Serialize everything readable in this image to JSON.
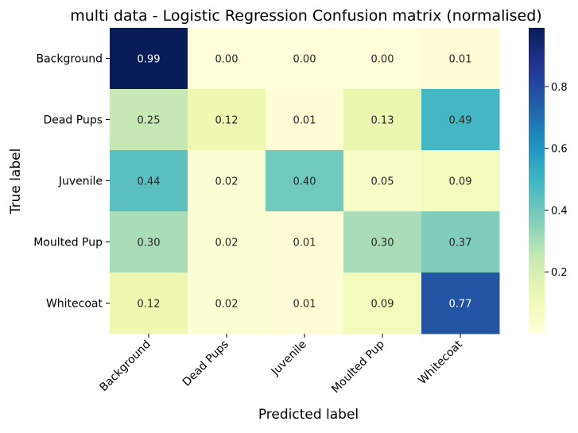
{
  "chart_data": {
    "type": "heatmap",
    "title": "multi data - Logistic Regression Confusion matrix (normalised)",
    "xlabel": "Predicted label",
    "ylabel": "True label",
    "x_categories": [
      "Background",
      "Dead Pups",
      "Juvenile",
      "Moulted Pup",
      "Whitecoat"
    ],
    "y_categories": [
      "Background",
      "Dead Pups",
      "Juvenile",
      "Moulted Pup",
      "Whitecoat"
    ],
    "values": [
      [
        0.99,
        0.0,
        0.0,
        0.0,
        0.01
      ],
      [
        0.25,
        0.12,
        0.01,
        0.13,
        0.49
      ],
      [
        0.44,
        0.02,
        0.4,
        0.05,
        0.09
      ],
      [
        0.3,
        0.02,
        0.01,
        0.3,
        0.37
      ],
      [
        0.12,
        0.02,
        0.01,
        0.09,
        0.77
      ]
    ],
    "value_labels": [
      [
        "0.99",
        "0.00",
        "0.00",
        "0.00",
        "0.01"
      ],
      [
        "0.25",
        "0.12",
        "0.01",
        "0.13",
        "0.49"
      ],
      [
        "0.44",
        "0.02",
        "0.40",
        "0.05",
        "0.09"
      ],
      [
        "0.30",
        "0.02",
        "0.01",
        "0.30",
        "0.37"
      ],
      [
        "0.12",
        "0.02",
        "0.01",
        "0.09",
        "0.77"
      ]
    ],
    "colorbar": {
      "colormap": "YlGnBu",
      "range": [
        0.0,
        0.99
      ],
      "ticks": [
        0.2,
        0.4,
        0.6,
        0.8
      ],
      "tick_labels": [
        "0.2",
        "0.4",
        "0.6",
        "0.8"
      ]
    },
    "grid": false,
    "legend": "colorbar-right"
  }
}
